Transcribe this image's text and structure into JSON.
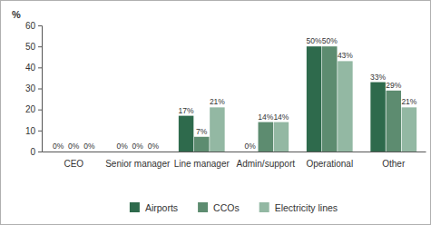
{
  "chart_data": {
    "type": "bar",
    "y_label": "%",
    "categories": [
      "CEO",
      "Senior manager",
      "Line manager",
      "Admin/support",
      "Operational",
      "Other"
    ],
    "series": [
      {
        "name": "Airports",
        "color": "#2e6a4c",
        "values": [
          0,
          0,
          17,
          0,
          50,
          33
        ],
        "value_labels": [
          "0%",
          "0%",
          "17%",
          "0%",
          "50%",
          "33%"
        ]
      },
      {
        "name": "CCOs",
        "color": "#5d8c70",
        "values": [
          0,
          0,
          7,
          14,
          50,
          29
        ],
        "value_labels": [
          "0%",
          "0%",
          "7%",
          "14%",
          "50%",
          "29%"
        ]
      },
      {
        "name": "Electricity lines",
        "color": "#93b8a3",
        "values": [
          0,
          0,
          21,
          14,
          43,
          21
        ],
        "value_labels": [
          "0%",
          "0%",
          "21%",
          "14%",
          "43%",
          "21%"
        ]
      }
    ],
    "ylim": [
      0,
      60
    ],
    "yticks": [
      0,
      10,
      20,
      30,
      40,
      50,
      60
    ],
    "grid": false,
    "legend": "bottom",
    "data_labels": true
  }
}
